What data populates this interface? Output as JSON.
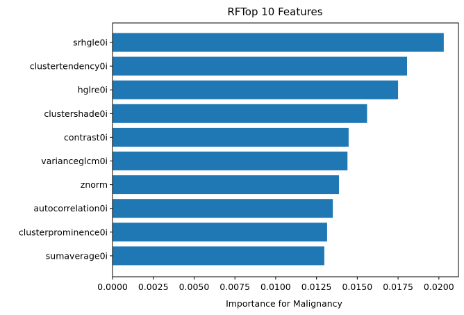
{
  "chart_data": {
    "type": "bar",
    "orientation": "horizontal",
    "title": "RFTop 10 Features",
    "xlabel": "Importance for Malignancy",
    "ylabel": "",
    "categories": [
      "srhgle0i",
      "clustertendency0i",
      "hglre0i",
      "clustershade0i",
      "contrast0i",
      "varianceglcm0i",
      "znorm",
      "autocorrelation0i",
      "clusterprominence0i",
      "sumaverage0i"
    ],
    "values": [
      0.0203,
      0.01805,
      0.0175,
      0.0156,
      0.01447,
      0.0144,
      0.01388,
      0.0135,
      0.01315,
      0.01298
    ],
    "xlim": [
      0,
      0.0212
    ],
    "xticks": [
      "0.0000",
      "0.0025",
      "0.0050",
      "0.0075",
      "0.0100",
      "0.0125",
      "0.0150",
      "0.0175",
      "0.0200"
    ],
    "bar_color": "#1f77b4",
    "grid": false,
    "legend": false
  }
}
